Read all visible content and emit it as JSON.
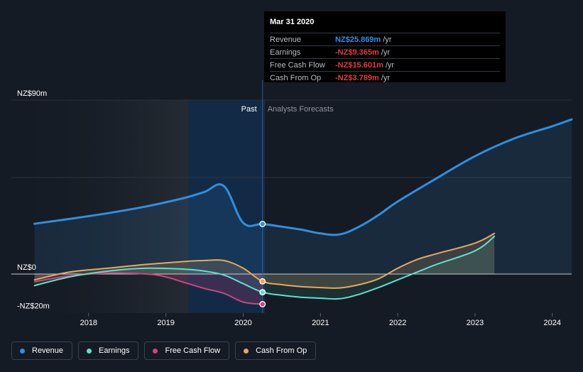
{
  "tooltip": {
    "date": "Mar 31 2020",
    "rows": [
      {
        "label": "Revenue",
        "value": "NZ$25.869m",
        "unit": "/yr",
        "color": "#2e8fe4"
      },
      {
        "label": "Earnings",
        "value": "-NZ$9.365m",
        "unit": "/yr",
        "color": "#e6393f"
      },
      {
        "label": "Free Cash Flow",
        "value": "-NZ$15.601m",
        "unit": "/yr",
        "color": "#e6393f"
      },
      {
        "label": "Cash From Op",
        "value": "-NZ$3.789m",
        "unit": "/yr",
        "color": "#e6393f"
      }
    ]
  },
  "legend": [
    {
      "label": "Revenue",
      "color": "#2f8fe0"
    },
    {
      "label": "Earnings",
      "color": "#5fe0cc"
    },
    {
      "label": "Free Cash Flow",
      "color": "#c9467f"
    },
    {
      "label": "Cash From Op",
      "color": "#e4a95e"
    }
  ],
  "chart_data": {
    "type": "line",
    "title": "",
    "xlabel": "",
    "ylabel": "",
    "xlim": [
      2017.0,
      2024.25
    ],
    "ylim": [
      -20,
      90
    ],
    "y_ticks": [
      {
        "value": 90,
        "label": "NZ$90m"
      },
      {
        "value": 0,
        "label": "NZ$0"
      },
      {
        "value": -20,
        "label": "-NZ$20m"
      }
    ],
    "x_ticks": [
      {
        "value": 2018,
        "label": "2018"
      },
      {
        "value": 2019,
        "label": "2019"
      },
      {
        "value": 2020,
        "label": "2020"
      },
      {
        "value": 2021,
        "label": "2021"
      },
      {
        "value": 2022,
        "label": "2022"
      },
      {
        "value": 2023,
        "label": "2023"
      },
      {
        "value": 2024,
        "label": "2024"
      }
    ],
    "past_label": "Past",
    "forecast_label": "Analysts Forecasts",
    "past_start": 2019.25,
    "divider": 2020.25,
    "current_x": 2020.25,
    "series": [
      {
        "name": "Revenue",
        "color": "#2f8fe0",
        "stroke_width": 3,
        "x": [
          2017.3,
          2017.75,
          2018.25,
          2018.75,
          2019.25,
          2019.5,
          2019.75,
          2020.0,
          2020.25,
          2020.5,
          2020.75,
          2021.0,
          2021.25,
          2021.5,
          2021.75,
          2022.0,
          2022.5,
          2023.0,
          2023.5,
          2024.0,
          2024.25
        ],
        "y": [
          26,
          28.5,
          31.5,
          35,
          39.5,
          42.5,
          45.5,
          26.5,
          25.9,
          24.5,
          23.0,
          21.0,
          20.5,
          24.5,
          30.5,
          37.5,
          49.5,
          61.0,
          70.0,
          76.5,
          80.0
        ],
        "forecast_from": 8
      },
      {
        "name": "Earnings",
        "color": "#5fe0cc",
        "stroke_width": 2,
        "x": [
          2017.3,
          2017.75,
          2018.25,
          2018.75,
          2019.25,
          2019.5,
          2019.75,
          2020.0,
          2020.25,
          2020.5,
          2020.75,
          2021.0,
          2021.25,
          2021.5,
          2021.75,
          2022.0,
          2022.25,
          2022.5,
          2023.0,
          2023.25
        ],
        "y": [
          -6,
          -1.5,
          1.5,
          3.0,
          2.5,
          1.5,
          -0.5,
          -5.0,
          -9.4,
          -11.0,
          -12.0,
          -12.5,
          -12.8,
          -10.5,
          -7.0,
          -3.0,
          1.0,
          5.0,
          12.0,
          19.5
        ],
        "forecast_from": 8
      },
      {
        "name": "Free Cash Flow",
        "color": "#c9467f",
        "stroke_width": 2,
        "x": [
          2017.3,
          2017.75,
          2018.25,
          2018.75,
          2019.0,
          2019.25,
          2019.5,
          2019.75,
          2020.0,
          2020.25
        ],
        "y": [
          -4,
          -1,
          0.5,
          0,
          -1.5,
          -4.5,
          -7.5,
          -10.0,
          -14.5,
          -15.6
        ],
        "forecast_from": 99
      },
      {
        "name": "Cash From Op",
        "color": "#e4a95e",
        "stroke_width": 2,
        "x": [
          2017.3,
          2017.75,
          2018.25,
          2018.75,
          2019.25,
          2019.5,
          2019.75,
          2020.0,
          2020.25,
          2020.5,
          2020.75,
          2021.0,
          2021.25,
          2021.5,
          2021.75,
          2022.0,
          2022.25,
          2022.5,
          2023.0,
          2023.25
        ],
        "y": [
          -3,
          1,
          3.0,
          5,
          6.5,
          7.0,
          7.0,
          3.0,
          -3.8,
          -5.5,
          -6.5,
          -7.0,
          -7.2,
          -5.5,
          -2.5,
          3.0,
          7.5,
          10.5,
          16.0,
          21.0
        ],
        "forecast_from": 8
      }
    ]
  }
}
